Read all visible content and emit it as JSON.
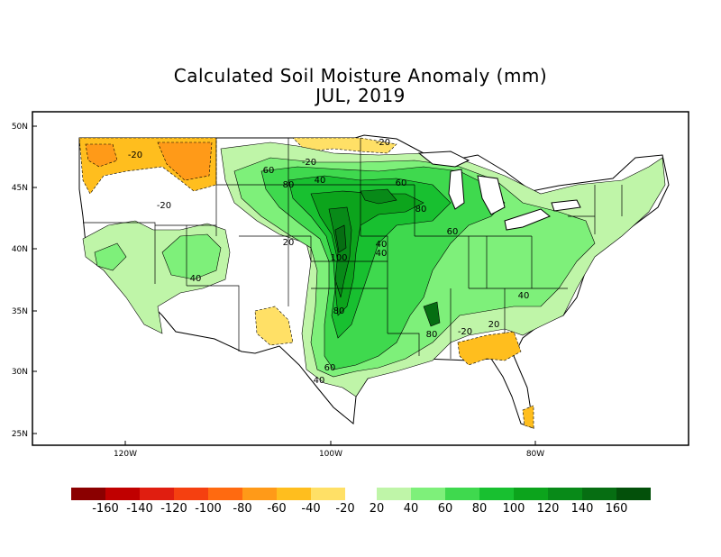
{
  "title": "Calculated Soil Moisture Anomaly (mm)",
  "subtitle": "JUL, 2019",
  "lat_labels": [
    "50N",
    "45N",
    "40N",
    "35N",
    "30N",
    "25N"
  ],
  "lon_labels": [
    "120W",
    "100W",
    "80W"
  ],
  "contour_labels": [
    "-20",
    "-20",
    "-20",
    "-20",
    "20",
    "40",
    "40",
    "40",
    "40",
    "60",
    "60",
    "60",
    "60",
    "80",
    "80",
    "80",
    "80",
    "100",
    "40",
    "-20",
    "20",
    "40"
  ],
  "legend": {
    "dry_colors": [
      "#8b0000",
      "#c00000",
      "#e01e10",
      "#f54010",
      "#ff6a10",
      "#ff9a18",
      "#ffbe1e",
      "#ffe066"
    ],
    "wet_colors": [
      "#bff5a8",
      "#7ef07a",
      "#3fd94e",
      "#18c030",
      "#0ca41c",
      "#088a18",
      "#066e12",
      "#03500a"
    ],
    "labels": [
      "-160",
      "-140",
      "-120",
      "-100",
      "-80",
      "-60",
      "-40",
      "-20",
      "20",
      "40",
      "60",
      "80",
      "100",
      "120",
      "140",
      "160"
    ]
  }
}
